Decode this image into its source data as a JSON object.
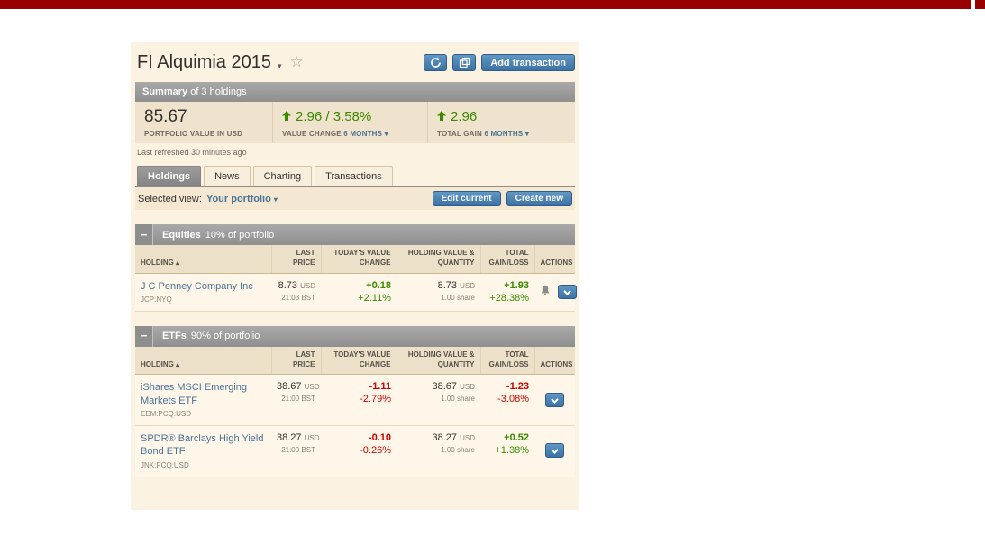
{
  "page": {
    "title": "FI Alquimia 2015",
    "last_refreshed": "Last refreshed 30 minutes ago"
  },
  "header_buttons": {
    "refresh_icon": "refresh-icon",
    "copy_icon": "copy-portfolio-icon",
    "add_transaction": "Add transaction"
  },
  "summary": {
    "title_bold": "Summary",
    "title_rest": " of 3 holdings",
    "portfolio_value": "85.67",
    "portfolio_value_label": "PORTFOLIO VALUE IN USD",
    "value_change": "2.96 / 3.58%",
    "value_change_label": "VALUE CHANGE",
    "value_change_period": "6 MONTHS",
    "total_gain": "2.96",
    "total_gain_label": "TOTAL GAIN",
    "total_gain_period": "6 MONTHS"
  },
  "tabs": [
    {
      "label": "Holdings",
      "active": true
    },
    {
      "label": "News",
      "active": false
    },
    {
      "label": "Charting",
      "active": false
    },
    {
      "label": "Transactions",
      "active": false
    }
  ],
  "view_bar": {
    "label": "Selected view:",
    "value": "Your portfolio",
    "edit_current": "Edit current",
    "create_new": "Create new"
  },
  "table": {
    "headers": [
      "HOLDING",
      "LAST PRICE",
      "TODAY'S VALUE CHANGE",
      "HOLDING VALUE & QUANTITY",
      "TOTAL GAIN/LOSS",
      "ACTIONS"
    ]
  },
  "sections": [
    {
      "name": "Equities",
      "share": "10% of portfolio",
      "rows": [
        {
          "holding": "J C Penney Company Inc",
          "symbol": "JCP:NYQ",
          "price": "8.73",
          "price_currency": "USD",
          "price_time": "21:03 BST",
          "change_abs": "+0.18",
          "change_pct": "+2.11%",
          "change_dir": "pos",
          "value": "8.73",
          "value_currency": "USD",
          "quantity": "1.00 share",
          "gain_abs": "+1.93",
          "gain_pct": "+28.38%",
          "gain_dir": "pos",
          "alert": true
        }
      ]
    },
    {
      "name": "ETFs",
      "share": "90% of portfolio",
      "rows": [
        {
          "holding": "iShares MSCI Emerging Markets ETF",
          "symbol": "EEM:PCQ:USD",
          "price": "38.67",
          "price_currency": "USD",
          "price_time": "21:00 BST",
          "change_abs": "-1.11",
          "change_pct": "-2.79%",
          "change_dir": "neg",
          "value": "38.67",
          "value_currency": "USD",
          "quantity": "1.00 share",
          "gain_abs": "-1.23",
          "gain_pct": "-3.08%",
          "gain_dir": "neg",
          "alert": false
        },
        {
          "holding": "SPDR® Barclays High Yield Bond ETF",
          "symbol": "JNK:PCQ:USD",
          "price": "38.27",
          "price_currency": "USD",
          "price_time": "21:00 BST",
          "change_abs": "-0.10",
          "change_pct": "-0.26%",
          "change_dir": "neg",
          "value": "38.27",
          "value_currency": "USD",
          "quantity": "1.00 share",
          "gain_abs": "+0.52",
          "gain_pct": "+1.38%",
          "gain_dir": "pos",
          "alert": false
        }
      ]
    }
  ],
  "colors": {
    "positive": "#3c8a00",
    "negative": "#cc0000",
    "accent_blue": "#4a7396",
    "button_blue": "#3d72a4",
    "top_bar_red": "#990000"
  }
}
